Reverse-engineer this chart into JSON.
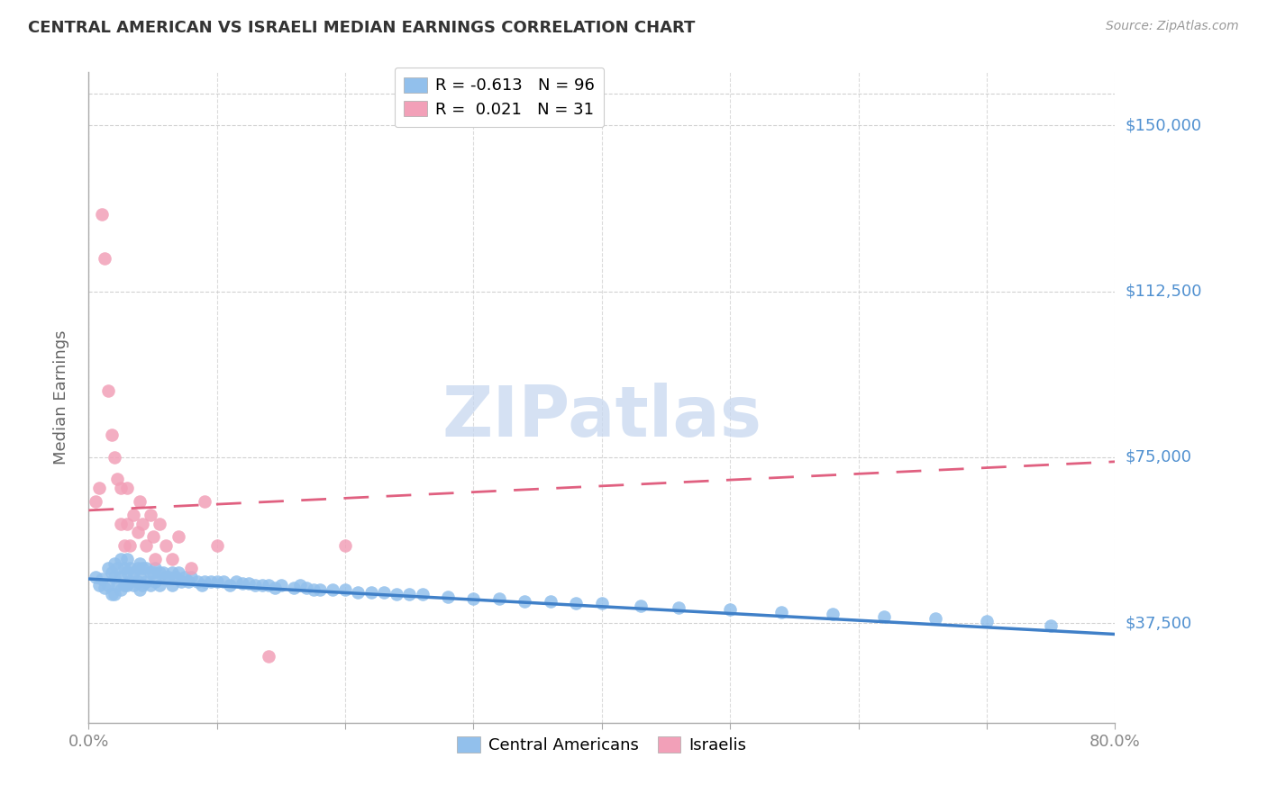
{
  "title": "CENTRAL AMERICAN VS ISRAELI MEDIAN EARNINGS CORRELATION CHART",
  "source": "Source: ZipAtlas.com",
  "ylabel": "Median Earnings",
  "ytick_labels": [
    "$37,500",
    "$75,000",
    "$112,500",
    "$150,000"
  ],
  "ytick_values": [
    37500,
    75000,
    112500,
    150000
  ],
  "ymin": 15000,
  "ymax": 162000,
  "xmin": 0.0,
  "xmax": 0.8,
  "legend_blue_r": "-0.613",
  "legend_blue_n": "96",
  "legend_pink_r": "0.021",
  "legend_pink_n": "31",
  "blue_color": "#92C0EC",
  "pink_color": "#F2A0B8",
  "blue_line_color": "#4080C8",
  "pink_trendline_color": "#E06080",
  "grid_color": "#CCCCCC",
  "axis_color": "#AAAAAA",
  "right_label_color": "#5090D0",
  "watermark_color": "#C8D8F0",
  "blue_scatter_x": [
    0.005,
    0.008,
    0.01,
    0.012,
    0.015,
    0.015,
    0.018,
    0.018,
    0.02,
    0.02,
    0.02,
    0.022,
    0.022,
    0.025,
    0.025,
    0.025,
    0.028,
    0.028,
    0.03,
    0.03,
    0.03,
    0.032,
    0.032,
    0.035,
    0.035,
    0.038,
    0.038,
    0.04,
    0.04,
    0.04,
    0.042,
    0.042,
    0.045,
    0.045,
    0.048,
    0.048,
    0.05,
    0.052,
    0.052,
    0.055,
    0.055,
    0.058,
    0.06,
    0.062,
    0.065,
    0.065,
    0.068,
    0.07,
    0.072,
    0.075,
    0.078,
    0.08,
    0.085,
    0.088,
    0.09,
    0.095,
    0.1,
    0.105,
    0.11,
    0.115,
    0.12,
    0.125,
    0.13,
    0.135,
    0.14,
    0.145,
    0.15,
    0.16,
    0.165,
    0.17,
    0.175,
    0.18,
    0.19,
    0.2,
    0.21,
    0.22,
    0.23,
    0.24,
    0.25,
    0.26,
    0.28,
    0.3,
    0.32,
    0.34,
    0.36,
    0.38,
    0.4,
    0.43,
    0.46,
    0.5,
    0.54,
    0.58,
    0.62,
    0.66,
    0.7,
    0.75
  ],
  "blue_scatter_y": [
    48000,
    46000,
    47500,
    45500,
    50000,
    46000,
    49000,
    44000,
    51000,
    48000,
    44000,
    50000,
    46000,
    52000,
    48000,
    45000,
    50000,
    46000,
    52000,
    49000,
    46000,
    50000,
    47000,
    49000,
    46000,
    50000,
    47000,
    51000,
    48000,
    45000,
    50000,
    46000,
    50000,
    47000,
    49000,
    46000,
    49000,
    50000,
    47000,
    49000,
    46000,
    49000,
    48000,
    48000,
    49000,
    46000,
    48000,
    49000,
    47000,
    48000,
    47000,
    48000,
    47000,
    46000,
    47000,
    47000,
    47000,
    47000,
    46000,
    47000,
    46500,
    46500,
    46000,
    46000,
    46000,
    45500,
    46000,
    45500,
    46000,
    45500,
    45000,
    45000,
    45000,
    45000,
    44500,
    44500,
    44500,
    44000,
    44000,
    44000,
    43500,
    43000,
    43000,
    42500,
    42500,
    42000,
    42000,
    41500,
    41000,
    40500,
    40000,
    39500,
    39000,
    38500,
    38000,
    37000
  ],
  "pink_scatter_x": [
    0.005,
    0.008,
    0.01,
    0.012,
    0.015,
    0.018,
    0.02,
    0.022,
    0.025,
    0.025,
    0.028,
    0.03,
    0.03,
    0.032,
    0.035,
    0.038,
    0.04,
    0.042,
    0.045,
    0.048,
    0.05,
    0.052,
    0.055,
    0.06,
    0.065,
    0.07,
    0.08,
    0.09,
    0.1,
    0.14,
    0.2
  ],
  "pink_scatter_y": [
    65000,
    68000,
    130000,
    120000,
    90000,
    80000,
    75000,
    70000,
    68000,
    60000,
    55000,
    68000,
    60000,
    55000,
    62000,
    58000,
    65000,
    60000,
    55000,
    62000,
    57000,
    52000,
    60000,
    55000,
    52000,
    57000,
    50000,
    65000,
    55000,
    30000,
    55000
  ],
  "blue_trendline_x": [
    0.0,
    0.8
  ],
  "blue_trendline_y": [
    47500,
    35000
  ],
  "pink_trendline_x": [
    0.0,
    0.8
  ],
  "pink_trendline_y": [
    63000,
    74000
  ]
}
